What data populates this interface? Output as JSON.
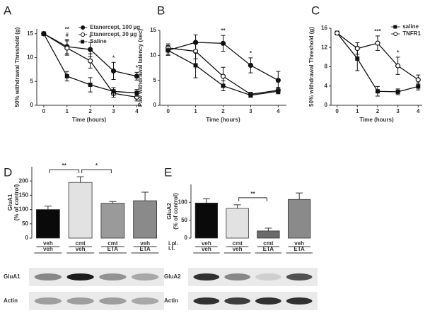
{
  "chart_data": [
    {
      "type": "line",
      "label": "A",
      "ylabel": "50% withdrawal Threshold (g)",
      "xlabel": "Time (hours)",
      "x": [
        0,
        1,
        2,
        3,
        4
      ],
      "xlim": [
        -0.3,
        4.2
      ],
      "xticks": [
        0,
        1,
        2,
        3,
        4
      ],
      "ylim": [
        0,
        16
      ],
      "yticks": [
        0,
        5,
        10,
        15
      ],
      "legend": "upper right",
      "series": [
        {
          "name": "Etanercept, 100 µg",
          "marker": "circle",
          "color": "#111111",
          "values": [
            15,
            12.3,
            11.7,
            7.2,
            6.1
          ],
          "errors": [
            0.4,
            1.5,
            1.5,
            1.8,
            0.8
          ]
        },
        {
          "name": "Etanercept, 30 µg",
          "marker": "open-circle",
          "color": "#111111",
          "values": [
            15,
            12,
            9.3,
            2.5,
            1.7
          ],
          "errors": [
            0.4,
            1.5,
            1.5,
            0.8,
            0.8
          ]
        },
        {
          "name": "Saline",
          "marker": "square",
          "color": "#111111",
          "values": [
            15,
            6.1,
            4.3,
            2.9,
            2.6
          ],
          "errors": [
            0.4,
            1,
            1.5,
            0.8,
            0.7
          ]
        }
      ],
      "annotations": [
        {
          "x": 1,
          "text": "#"
        },
        {
          "x": 1,
          "text": "**"
        },
        {
          "x": 2,
          "text": "*"
        },
        {
          "x": 3,
          "text": "*"
        },
        {
          "x": 4,
          "text": "*"
        }
      ]
    },
    {
      "type": "line",
      "label": "B",
      "ylabel": "Paw withdrawal latency (sec)",
      "xlabel": "Time (hours)",
      "x": [
        0,
        1,
        2,
        3,
        4
      ],
      "xlim": [
        -0.3,
        4.3
      ],
      "xticks": [
        0,
        1,
        2,
        3,
        4
      ],
      "ylim": [
        0,
        15
      ],
      "yticks": [
        0,
        5,
        10,
        15
      ],
      "series": [
        {
          "marker": "circle",
          "color": "#111111",
          "values": [
            11,
            12.6,
            12.4,
            8,
            5
          ],
          "errors": [
            0.8,
            1.5,
            1.6,
            1.5,
            1.8
          ]
        },
        {
          "marker": "open-circle",
          "color": "#111111",
          "values": [
            11.5,
            10.8,
            5.8,
            2.2,
            3
          ],
          "errors": [
            0.8,
            1.5,
            1.8,
            0.4,
            0.6
          ]
        },
        {
          "marker": "square",
          "color": "#111111",
          "values": [
            11,
            8,
            3.9,
            2,
            2.8
          ],
          "errors": [
            1,
            2.5,
            1,
            0.4,
            0.5
          ]
        }
      ],
      "annotations": [
        {
          "x": 2,
          "text": "**"
        },
        {
          "x": 3,
          "text": "*"
        }
      ]
    },
    {
      "type": "line",
      "label": "C",
      "ylabel": "50% withdrawal Threshold (g)",
      "xlabel": "Time (hours)",
      "x": [
        0,
        1,
        2,
        3,
        4
      ],
      "xlim": [
        -0.3,
        4.2
      ],
      "xticks": [
        0,
        1,
        2,
        3,
        4
      ],
      "ylim": [
        0,
        16
      ],
      "yticks": [
        0,
        4,
        8,
        12,
        16
      ],
      "legend": "upper right",
      "series": [
        {
          "name": "saline",
          "marker": "square",
          "color": "#111111",
          "values": [
            15,
            9.7,
            2.9,
            2.8,
            3.9
          ],
          "errors": [
            0.4,
            2.5,
            1,
            0.6,
            0.7
          ]
        },
        {
          "name": "TNFR1",
          "marker": "open-circle",
          "color": "#111111",
          "values": [
            15,
            11.8,
            12.9,
            8.2,
            5.3
          ],
          "errors": [
            0.4,
            1.2,
            1.5,
            1.8,
            1
          ]
        }
      ],
      "annotations": [
        {
          "x": 2,
          "text": "***"
        },
        {
          "x": 3,
          "text": "*"
        }
      ]
    },
    {
      "type": "bar",
      "label": "D",
      "ylabel": [
        "GluA1",
        "(% of control)"
      ],
      "categories": [
        [
          "veh",
          "veh"
        ],
        [
          "cmt",
          "veh"
        ],
        [
          "cmt",
          "ETA"
        ],
        [
          "veh",
          "ETA"
        ]
      ],
      "values": [
        100,
        195,
        122,
        131
      ],
      "errors": [
        12,
        20,
        6,
        30
      ],
      "colors": [
        "#0a0a0a",
        "#e2e2e2",
        "#9a9a9a",
        "#8a8a8a"
      ],
      "ylim": [
        0,
        250
      ],
      "yticks": [
        0,
        50,
        100,
        150,
        200
      ],
      "brackets": [
        {
          "from": 0,
          "to": 1,
          "text": "**"
        },
        {
          "from": 1,
          "to": 2,
          "text": "*"
        }
      ],
      "blot_labels": [
        "GluA1",
        "Actin"
      ]
    },
    {
      "type": "bar",
      "label": "E",
      "ylabel": [
        "GluA2",
        "(% of control)"
      ],
      "categories": [
        [
          "veh",
          "veh"
        ],
        [
          "cmt",
          "veh"
        ],
        [
          "cmt",
          "ETA"
        ],
        [
          "veh",
          "ETA"
        ]
      ],
      "row_labels": [
        "i.pl.",
        "i.t."
      ],
      "values": [
        98,
        83,
        20,
        108
      ],
      "errors": [
        12,
        10,
        8,
        18
      ],
      "colors": [
        "#0a0a0a",
        "#e2e2e2",
        "#6a6a6a",
        "#8a8a8a"
      ],
      "ylim": [
        0,
        150
      ],
      "yticks": [
        0,
        50,
        100
      ],
      "brackets": [
        {
          "from": 1,
          "to": 2,
          "text": "**"
        }
      ],
      "blot_labels": [
        "GluA2",
        "Actin"
      ]
    }
  ]
}
